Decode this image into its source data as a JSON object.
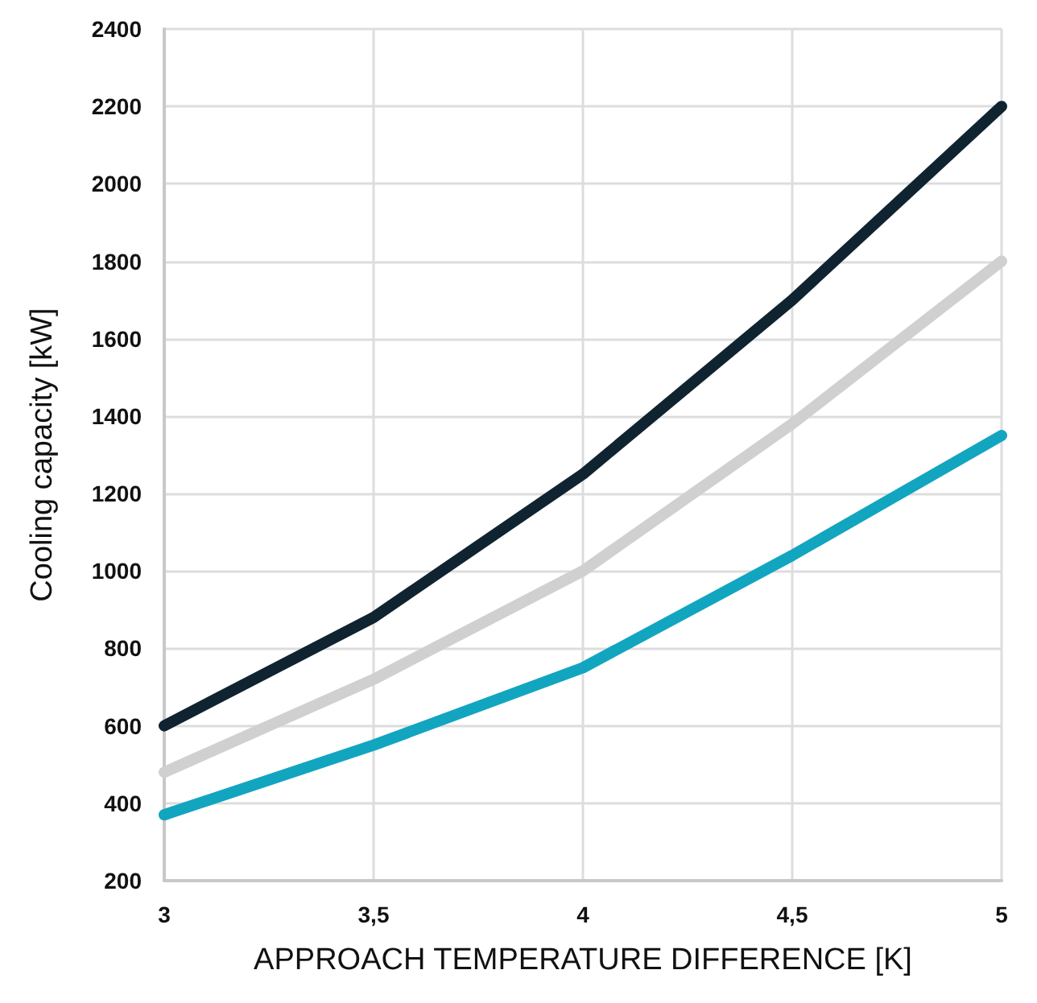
{
  "chart_data": {
    "type": "line",
    "xlabel": "APPROACH TEMPERATURE DIFFERENCE [K]",
    "ylabel": "Cooling capacity [kW]",
    "x": [
      3,
      3.5,
      4,
      4.5,
      5
    ],
    "series": [
      {
        "color": "#0f2430",
        "values": [
          600,
          880,
          1250,
          1700,
          2200
        ]
      },
      {
        "color": "#d0d0d0",
        "values": [
          480,
          720,
          1000,
          1380,
          1800
        ]
      },
      {
        "color": "#12a5c0",
        "values": [
          370,
          550,
          750,
          1040,
          1350
        ]
      }
    ],
    "xlim": [
      3,
      5
    ],
    "xticks": [
      3,
      {
        "value": 3.5,
        "label": "3,5"
      },
      4,
      {
        "value": 4.5,
        "label": "4,5"
      },
      5
    ],
    "ylim": [
      200,
      2400
    ],
    "yticks": [
      200,
      400,
      600,
      800,
      1000,
      1200,
      1400,
      1600,
      1800,
      2000,
      2200,
      2400
    ],
    "grid": true,
    "line_style": "solid"
  }
}
